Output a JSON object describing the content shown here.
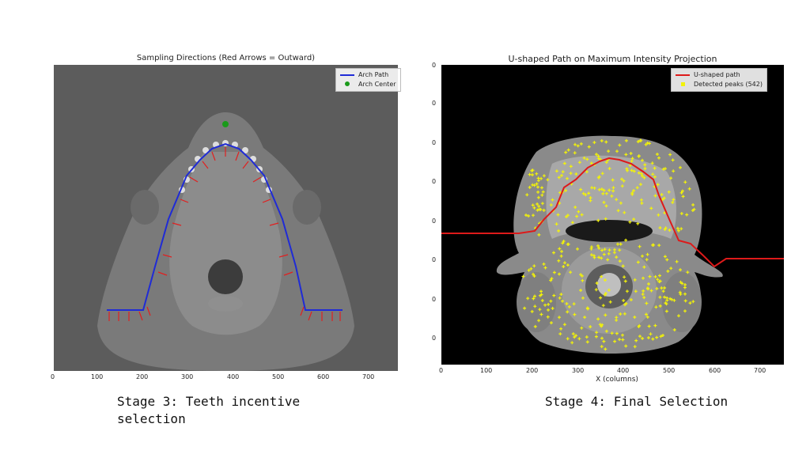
{
  "left_panel": {
    "title": "Sampling Directions (Red Arrows = Outward)",
    "legend": {
      "arch_path": "Arch Path",
      "arch_center": "Arch Center"
    },
    "x_ticks": [
      "0",
      "100",
      "200",
      "300",
      "400",
      "500",
      "600",
      "700"
    ],
    "colors": {
      "arch_path": "#1f2bd6",
      "arch_center": "#1a9a1a",
      "arrows": "#e02020"
    }
  },
  "right_panel": {
    "title": "U-shaped Path on Maximum Intensity Projection",
    "legend": {
      "u_path": "U-shaped path",
      "peaks": "Detected peaks (542)"
    },
    "x_ticks": [
      "0",
      "100",
      "200",
      "300",
      "400",
      "500",
      "600",
      "700"
    ],
    "y_ticks": [
      "0",
      "0",
      "0",
      "0",
      "0",
      "0",
      "0",
      "0"
    ],
    "xlabel": "X (columns)",
    "colors": {
      "u_path": "#dd1a1a",
      "peaks": "#f2f20a"
    }
  },
  "captions": {
    "left_line1": "Stage 3: Teeth incentive",
    "left_line2": "selection",
    "right": "Stage 4: Final Selection"
  }
}
